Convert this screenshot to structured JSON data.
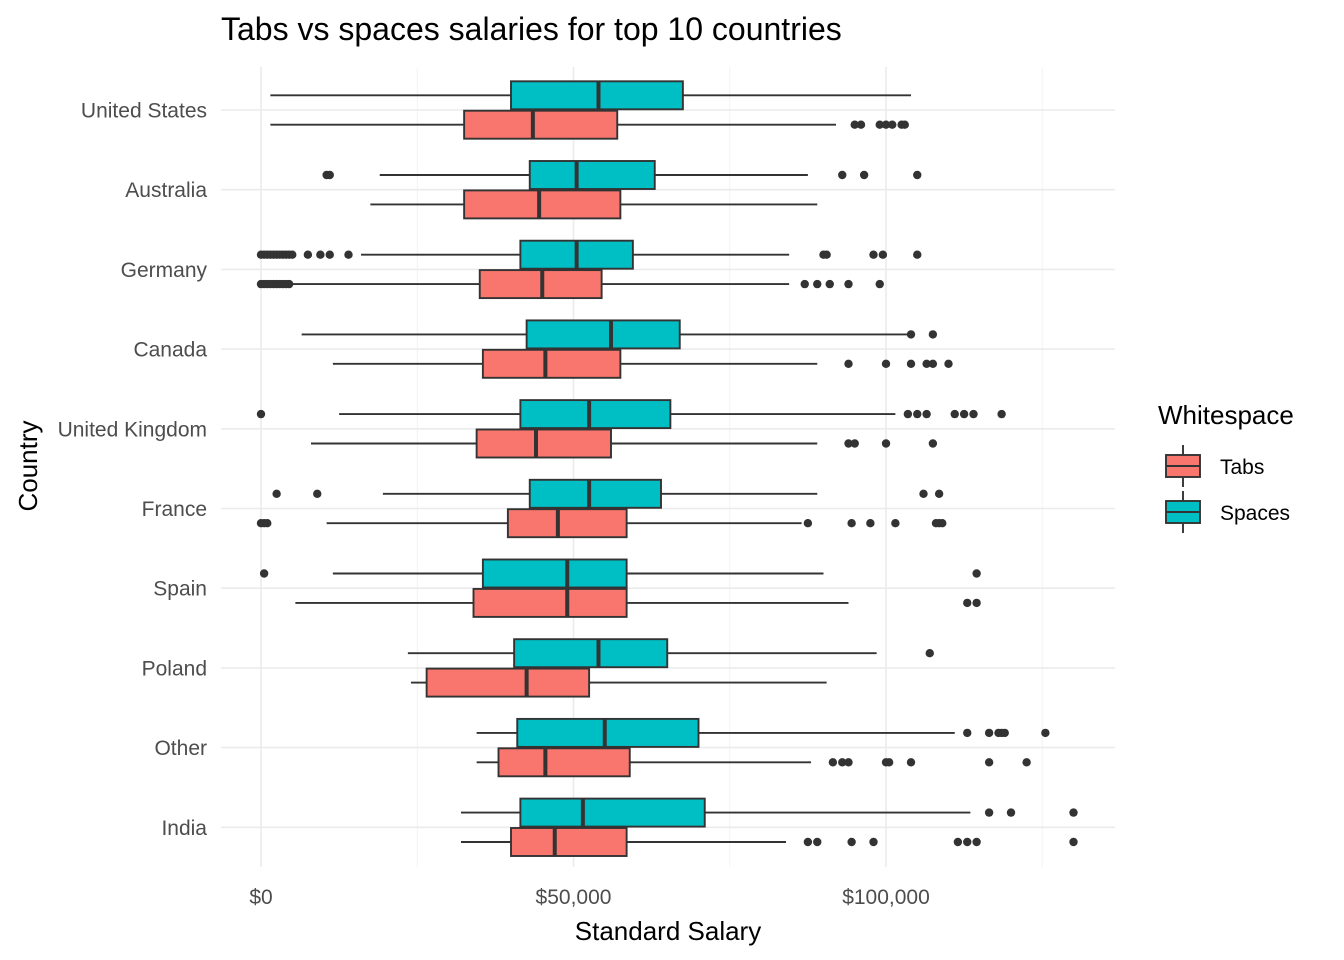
{
  "chart_data": {
    "type": "boxplot",
    "orientation": "horizontal",
    "title": "Tabs vs spaces salaries for top 10 countries",
    "xlabel": "Standard Salary",
    "ylabel": "Country",
    "xlim": [
      -6000,
      137000
    ],
    "x_ticks": [
      {
        "value": 0,
        "label": "$0"
      },
      {
        "value": 50000,
        "label": "$50,000"
      },
      {
        "value": 100000,
        "label": "$100,000"
      }
    ],
    "x_minor_grid": [
      25000,
      75000,
      125000
    ],
    "grid": true,
    "legend": {
      "title": "Whitespace",
      "position": "right",
      "entries": [
        {
          "label": "Tabs",
          "color": "#F8766D"
        },
        {
          "label": "Spaces",
          "color": "#00BFC4"
        }
      ]
    },
    "categories": [
      "United States",
      "Australia",
      "Germany",
      "Canada",
      "United Kingdom",
      "France",
      "Spain",
      "Poland",
      "Other",
      "India"
    ],
    "series": [
      {
        "name": "Tabs",
        "color": "#F8766D",
        "boxes": [
          {
            "category": "United States",
            "whisker_low": 1500,
            "q1": 32500,
            "median": 43500,
            "q3": 57000,
            "whisker_high": 92000,
            "outliers": [
              95000,
              96000,
              99000,
              100000,
              101000,
              102500,
              103000
            ]
          },
          {
            "category": "Australia",
            "whisker_low": 17500,
            "q1": 32500,
            "median": 44500,
            "q3": 57500,
            "whisker_high": 89000,
            "outliers": []
          },
          {
            "category": "Germany",
            "whisker_low": 0,
            "q1": 35000,
            "median": 45000,
            "q3": 54500,
            "whisker_high": 84500,
            "outliers": [
              0,
              500,
              1000,
              1500,
              2000,
              2500,
              3000,
              3500,
              4000,
              4500,
              87000,
              89000,
              91000,
              94000,
              99000
            ]
          },
          {
            "category": "Canada",
            "whisker_low": 11500,
            "q1": 35500,
            "median": 45500,
            "q3": 57500,
            "whisker_high": 89000,
            "outliers": [
              94000,
              100000,
              104000,
              106500,
              107500,
              110000
            ]
          },
          {
            "category": "United Kingdom",
            "whisker_low": 8000,
            "q1": 34500,
            "median": 44000,
            "q3": 56000,
            "whisker_high": 89000,
            "outliers": [
              94000,
              95000,
              100000,
              107500
            ]
          },
          {
            "category": "France",
            "whisker_low": 10500,
            "q1": 39500,
            "median": 47500,
            "q3": 58500,
            "whisker_high": 86500,
            "outliers": [
              0,
              500,
              1000,
              87500,
              94500,
              97500,
              101500,
              108000,
              108500,
              109000
            ]
          },
          {
            "category": "Spain",
            "whisker_low": 5500,
            "q1": 34000,
            "median": 49000,
            "q3": 58500,
            "whisker_high": 94000,
            "outliers": [
              113000,
              114500
            ]
          },
          {
            "category": "Poland",
            "whisker_low": 24000,
            "q1": 26500,
            "median": 42500,
            "q3": 52500,
            "whisker_high": 90500,
            "outliers": []
          },
          {
            "category": "Other",
            "whisker_low": 34500,
            "q1": 38000,
            "median": 45500,
            "q3": 59000,
            "whisker_high": 88000,
            "outliers": [
              91500,
              93000,
              94000,
              100000,
              100500,
              104000,
              116500,
              122500
            ]
          },
          {
            "category": "India",
            "whisker_low": 32000,
            "q1": 40000,
            "median": 47000,
            "q3": 58500,
            "whisker_high": 84000,
            "outliers": [
              87500,
              89000,
              94500,
              98000,
              111500,
              113000,
              114500,
              130000
            ]
          }
        ]
      },
      {
        "name": "Spaces",
        "color": "#00BFC4",
        "boxes": [
          {
            "category": "United States",
            "whisker_low": 1500,
            "q1": 40000,
            "median": 54000,
            "q3": 67500,
            "whisker_high": 104000,
            "outliers": []
          },
          {
            "category": "Australia",
            "whisker_low": 19000,
            "q1": 43000,
            "median": 50500,
            "q3": 63000,
            "whisker_high": 87500,
            "outliers": [
              10500,
              11000,
              93000,
              96500,
              105000
            ]
          },
          {
            "category": "Germany",
            "whisker_low": 16000,
            "q1": 41500,
            "median": 50500,
            "q3": 59500,
            "whisker_high": 84500,
            "outliers": [
              0,
              500,
              1000,
              1500,
              2000,
              2500,
              3000,
              3500,
              4000,
              4500,
              5000,
              7500,
              9500,
              11000,
              14000,
              90000,
              90500,
              98000,
              99500,
              105000
            ]
          },
          {
            "category": "Canada",
            "whisker_low": 6500,
            "q1": 42500,
            "median": 56000,
            "q3": 67000,
            "whisker_high": 104000,
            "outliers": [
              104000,
              107500
            ]
          },
          {
            "category": "United Kingdom",
            "whisker_low": 12500,
            "q1": 41500,
            "median": 52500,
            "q3": 65500,
            "whisker_high": 101500,
            "outliers": [
              0,
              103500,
              105000,
              106500,
              111000,
              112500,
              114000,
              118500
            ]
          },
          {
            "category": "France",
            "whisker_low": 19500,
            "q1": 43000,
            "median": 52500,
            "q3": 64000,
            "whisker_high": 89000,
            "outliers": [
              2500,
              9000,
              106000,
              108500
            ]
          },
          {
            "category": "Spain",
            "whisker_low": 11500,
            "q1": 35500,
            "median": 49000,
            "q3": 58500,
            "whisker_high": 90000,
            "outliers": [
              500,
              114500
            ]
          },
          {
            "category": "Poland",
            "whisker_low": 23500,
            "q1": 40500,
            "median": 54000,
            "q3": 65000,
            "whisker_high": 98500,
            "outliers": [
              107000
            ]
          },
          {
            "category": "Other",
            "whisker_low": 34500,
            "q1": 41000,
            "median": 55000,
            "q3": 70000,
            "whisker_high": 111000,
            "outliers": [
              113000,
              116500,
              118000,
              118500,
              119000,
              125500
            ]
          },
          {
            "category": "India",
            "whisker_low": 32000,
            "q1": 41500,
            "median": 51500,
            "q3": 71000,
            "whisker_high": 113500,
            "outliers": [
              116500,
              120000,
              130000
            ]
          }
        ]
      }
    ]
  }
}
